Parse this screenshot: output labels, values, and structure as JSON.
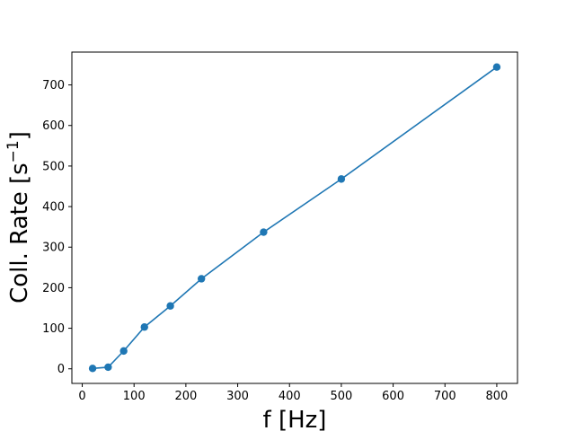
{
  "chart_data": {
    "type": "line",
    "title": "",
    "xlabel": "f [Hz]",
    "ylabel_base": "Coll. Rate [s",
    "ylabel_sup": "−1",
    "ylabel_end": "]",
    "xlim": [
      -20,
      840
    ],
    "ylim": [
      -36,
      781
    ],
    "x_ticks": [
      0,
      100,
      200,
      300,
      400,
      500,
      600,
      700,
      800
    ],
    "y_ticks": [
      0,
      100,
      200,
      300,
      400,
      500,
      600,
      700
    ],
    "grid": false,
    "series": [
      {
        "color": "#1f77b4",
        "marker": "circle",
        "x": [
          20,
          50,
          80,
          120,
          170,
          230,
          350,
          500,
          800
        ],
        "y": [
          1,
          4,
          44,
          103,
          155,
          222,
          337,
          468,
          744
        ]
      }
    ]
  }
}
